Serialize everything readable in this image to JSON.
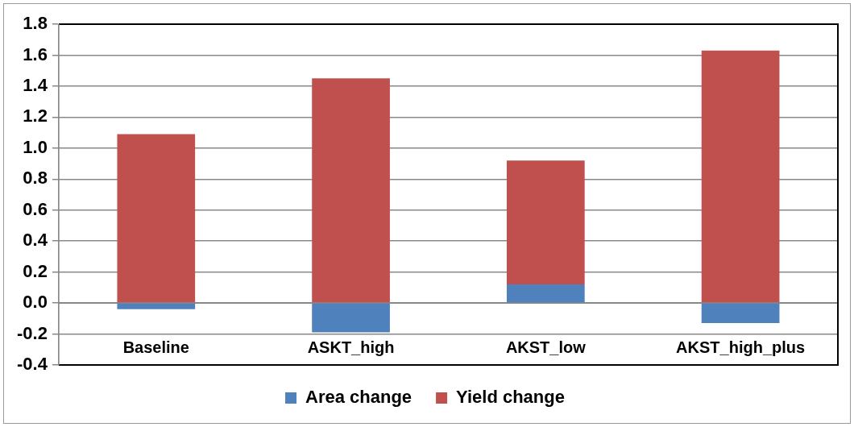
{
  "chart_data": {
    "type": "bar",
    "stacked": true,
    "categories": [
      "Baseline",
      "ASKT_high",
      "AKST_low",
      "AKST_high_plus"
    ],
    "series": [
      {
        "name": "Area change",
        "color": "#4f81bd",
        "values": [
          -0.04,
          -0.19,
          0.12,
          -0.13
        ]
      },
      {
        "name": "Yield change",
        "color": "#c0504d",
        "values": [
          1.09,
          1.45,
          0.8,
          1.63
        ]
      }
    ],
    "ylim": [
      -0.4,
      1.8
    ],
    "yticks": [
      {
        "value": -0.4,
        "label": "-0.4"
      },
      {
        "value": -0.2,
        "label": "-0.2"
      },
      {
        "value": 0,
        "label": "0.0"
      },
      {
        "value": 0.2,
        "label": "0.2"
      },
      {
        "value": 0.4,
        "label": "0.4"
      },
      {
        "value": 0.6,
        "label": "0.6"
      },
      {
        "value": 0.8,
        "label": "0.8"
      },
      {
        "value": 1,
        "label": "1.0"
      },
      {
        "value": 1.2,
        "label": "1.2"
      },
      {
        "value": 1.4,
        "label": "1.4"
      },
      {
        "value": 1.6,
        "label": "1.6"
      },
      {
        "value": 1.8,
        "label": "1.8"
      }
    ],
    "grid": "y",
    "legend": "bottom"
  }
}
